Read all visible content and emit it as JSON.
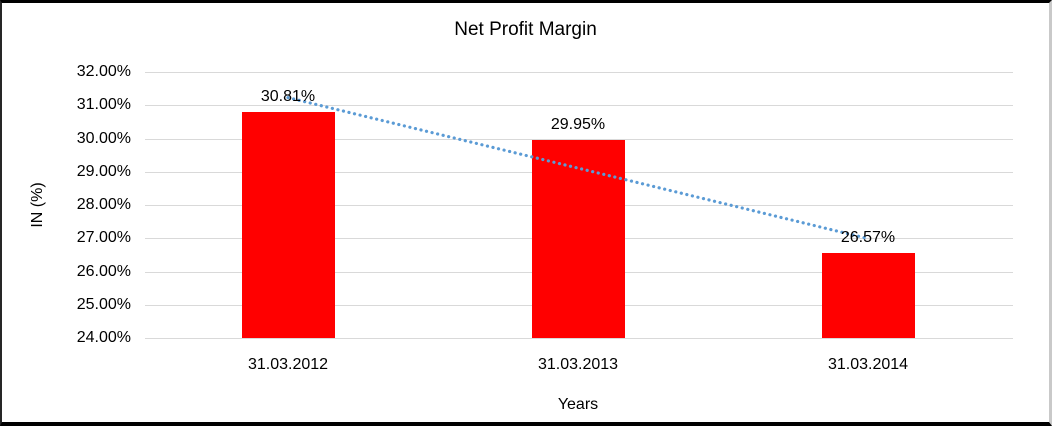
{
  "chart_data": {
    "type": "bar",
    "title": "Net Profit Margin",
    "xlabel": "Years",
    "ylabel": "IN (%)",
    "categories": [
      "31.03.2012",
      "31.03.2013",
      "31.03.2014"
    ],
    "values": [
      30.81,
      29.95,
      26.57
    ],
    "data_labels": [
      "30.81%",
      "29.95%",
      "26.57%"
    ],
    "ylim": [
      24,
      32
    ],
    "ytick_step": 1,
    "ytick_labels": [
      "24.00%",
      "25.00%",
      "26.00%",
      "27.00%",
      "28.00%",
      "29.00%",
      "30.00%",
      "31.00%",
      "32.00%"
    ],
    "grid": true,
    "legend": "none",
    "gridline_color": "#d9d9d9",
    "bar_color": "#ff0000",
    "text_color": "#000000",
    "trendline": {
      "type": "linear",
      "style": "dotted",
      "color": "#5b9bd5",
      "start_value": 31.23,
      "end_value": 26.99
    }
  }
}
